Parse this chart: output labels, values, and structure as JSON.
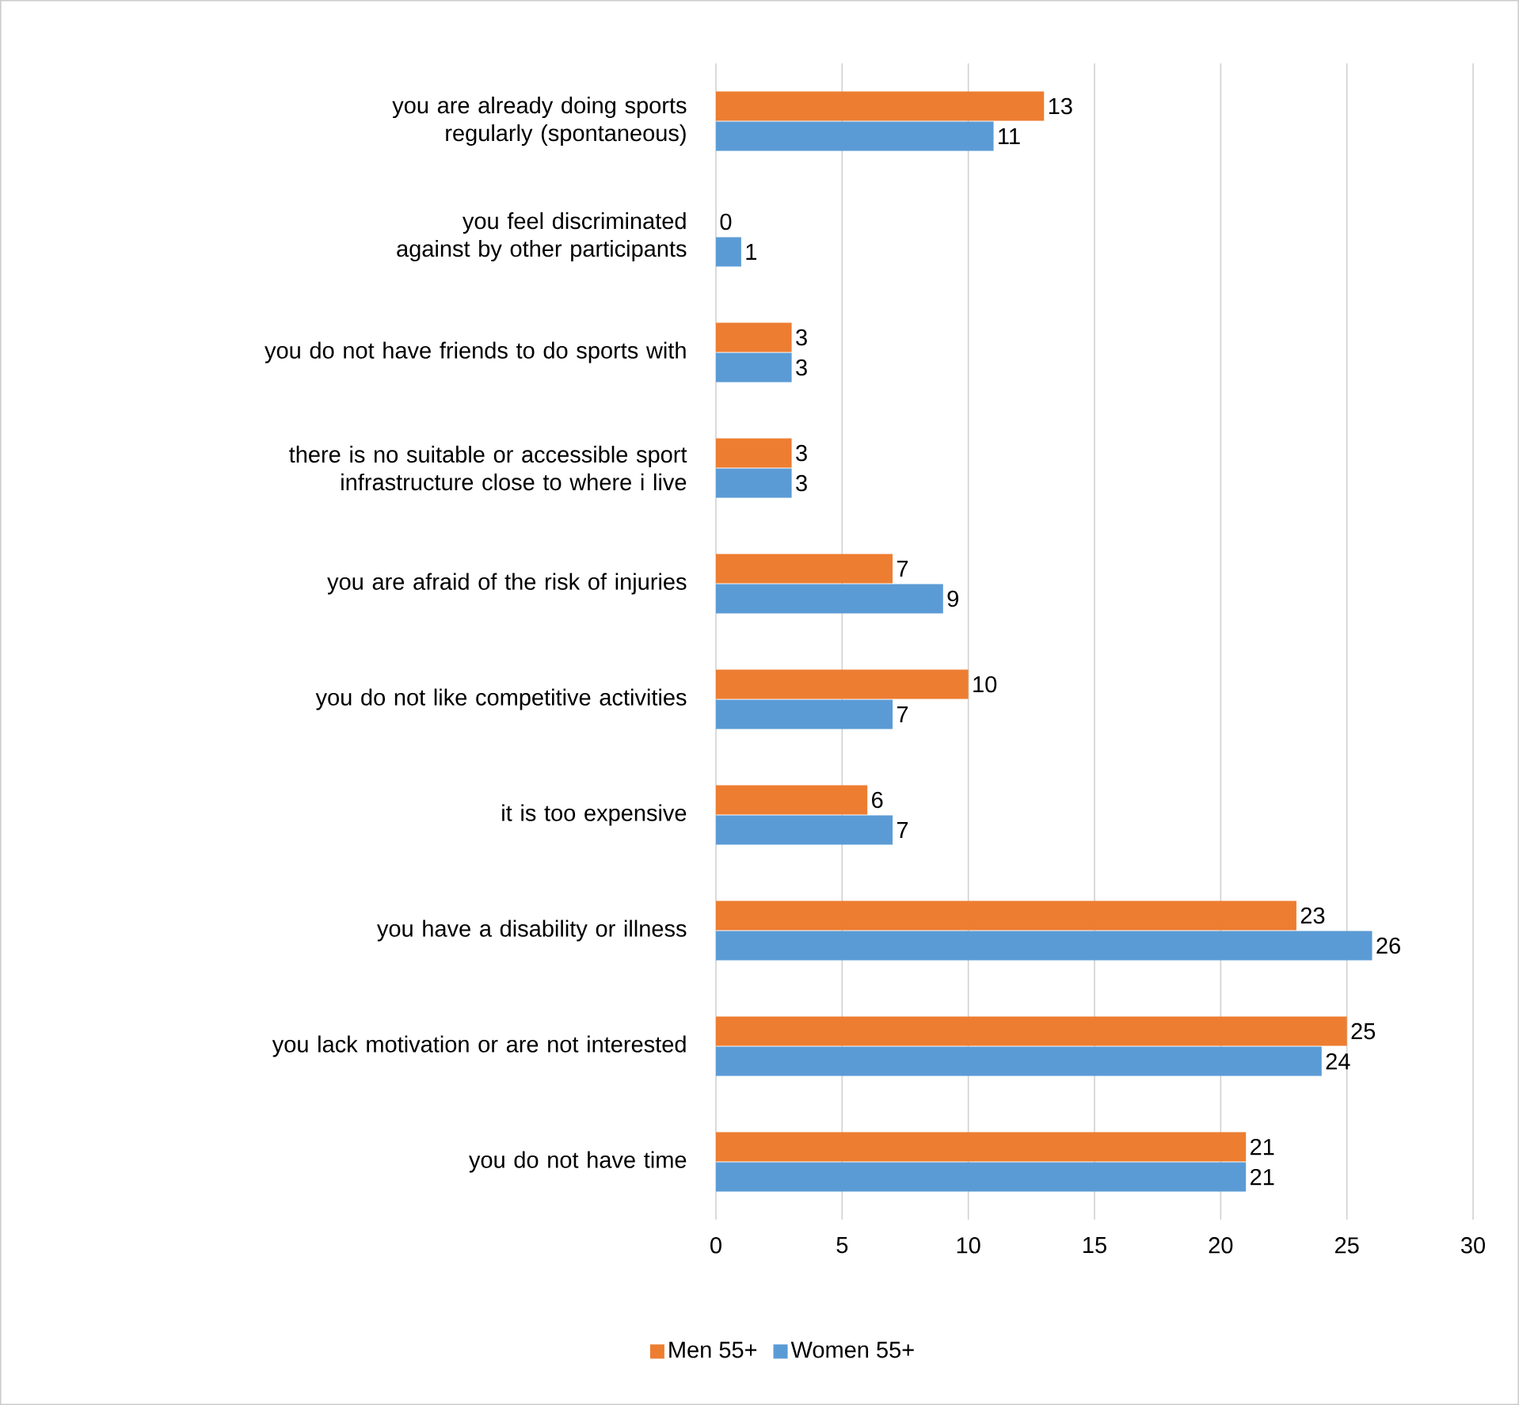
{
  "chart_data": {
    "type": "bar",
    "orientation": "horizontal",
    "categories": [
      "you are already doing sports regularly (spontaneous)",
      "you feel discriminated against by other participants",
      "you do not have friends to do sports with",
      "there is no suitable or accessible sport infrastructure close to where i live",
      "you are afraid of the risk of injuries",
      "you do not like competitive activities",
      "it is too expensive",
      "you have a disability or illness",
      "you lack motivation or are not interested",
      "you do not have time"
    ],
    "series": [
      {
        "name": "Men 55+",
        "color": "#ed7d31",
        "values": [
          13,
          0,
          3,
          3,
          7,
          10,
          6,
          23,
          25,
          21
        ]
      },
      {
        "name": "Women 55+",
        "color": "#5b9bd5",
        "values": [
          11,
          1,
          3,
          3,
          9,
          7,
          7,
          26,
          24,
          21
        ]
      }
    ],
    "xlim": [
      0,
      30
    ],
    "xticks": [
      0,
      5,
      10,
      15,
      20,
      25,
      30
    ],
    "grid": "x",
    "legend": "bottom",
    "data_labels": true
  }
}
